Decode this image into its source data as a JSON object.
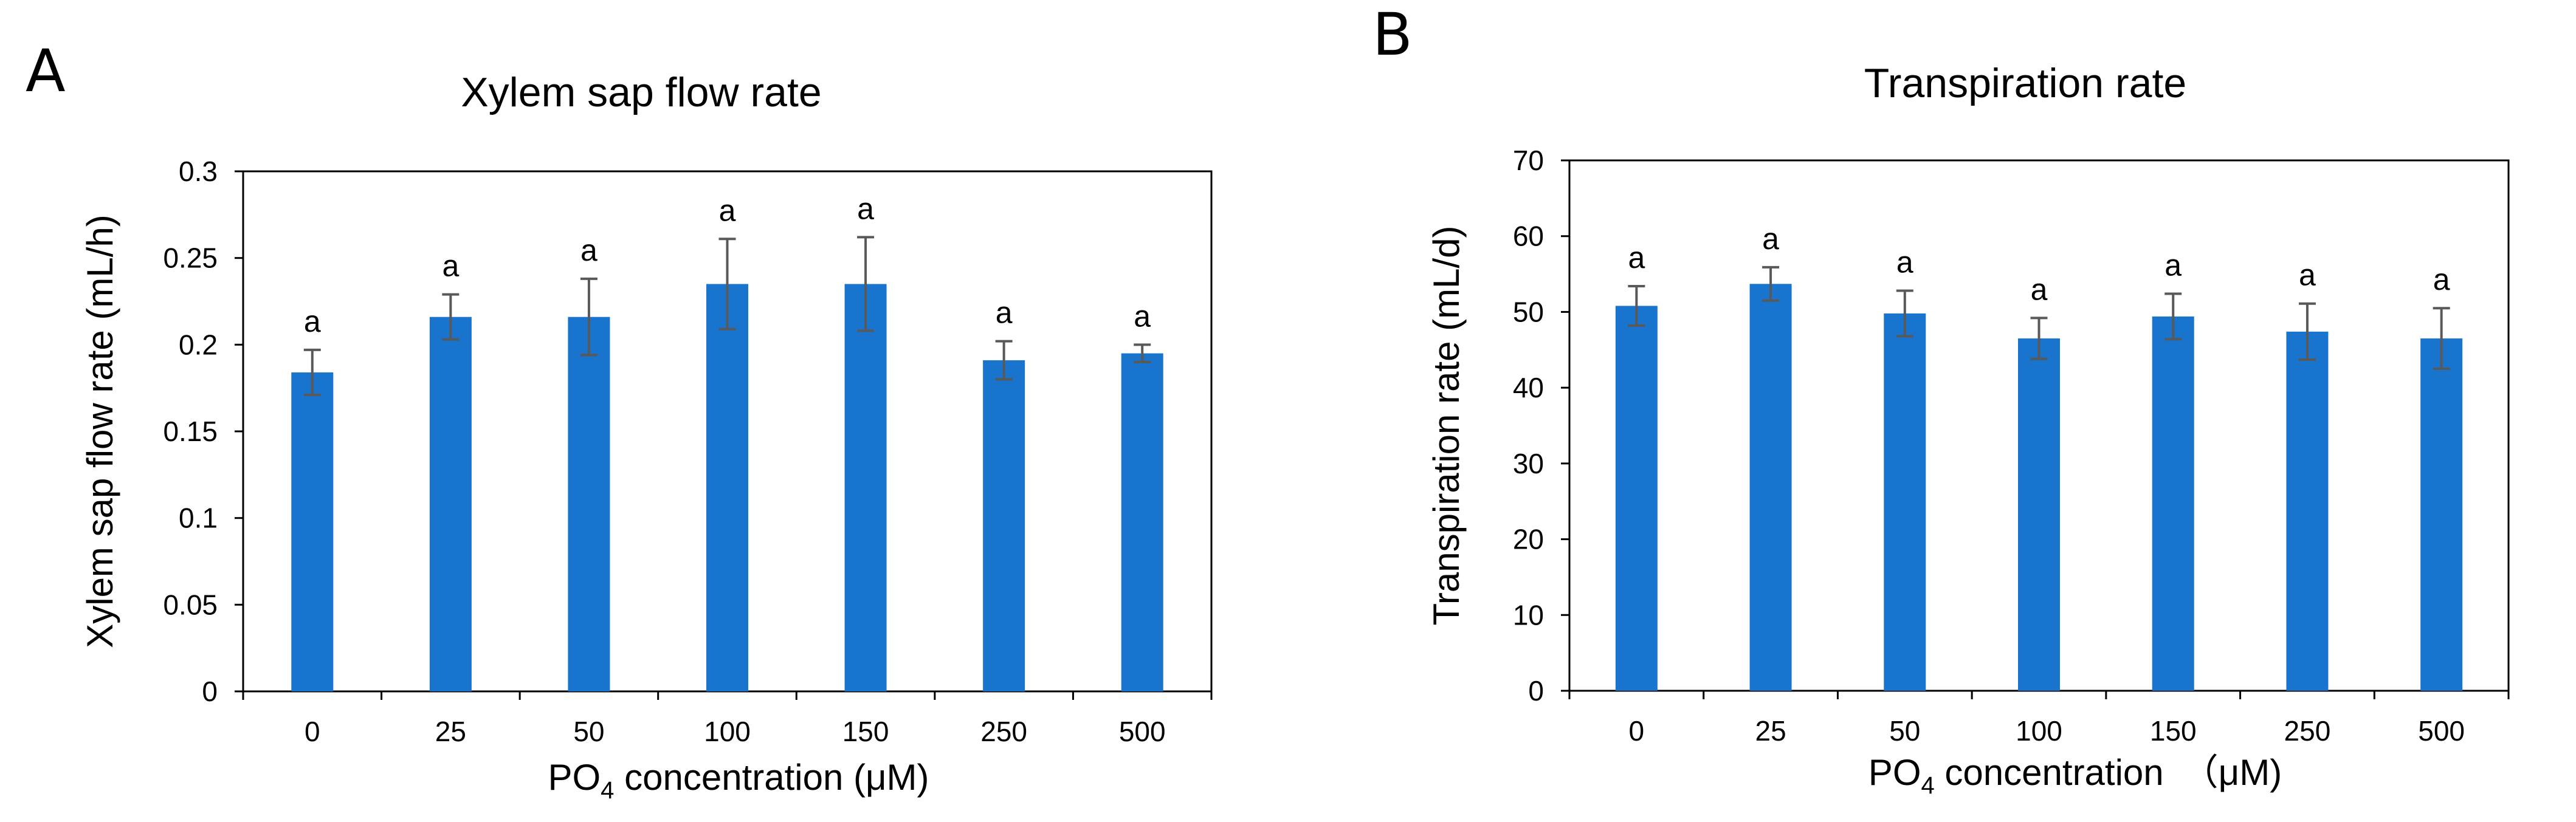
{
  "colors": {
    "bar": "#1874CD",
    "error_bar": "#595959",
    "axis": "#000000",
    "text": "#000000"
  },
  "chart_data": [
    {
      "panel_label": "A",
      "type": "bar",
      "title": "Xylem sap flow rate",
      "xlabel_main": "PO",
      "xlabel_sub": "4",
      "xlabel_rest": " concentration (μM)",
      "ylabel": "Xylem sap flow rate (mL/h)",
      "categories": [
        "0",
        "25",
        "50",
        "100",
        "150",
        "250",
        "500"
      ],
      "values": [
        0.184,
        0.216,
        0.216,
        0.235,
        0.235,
        0.191,
        0.195
      ],
      "errors": [
        0.013,
        0.013,
        0.022,
        0.026,
        0.027,
        0.011,
        0.005
      ],
      "significance": [
        "a",
        "a",
        "a",
        "a",
        "a",
        "a",
        "a"
      ],
      "ylim": [
        0,
        0.3
      ],
      "yticks": [
        0,
        0.05,
        0.1,
        0.15,
        0.2,
        0.25,
        0.3
      ],
      "ytick_labels": [
        "0",
        "0.05",
        "0.1",
        "0.15",
        "0.2",
        "0.25",
        "0.3"
      ]
    },
    {
      "panel_label": "B",
      "type": "bar",
      "title": "Transpiration rate",
      "xlabel_main": "PO",
      "xlabel_sub": "4",
      "xlabel_rest": " concentration　（μM)",
      "ylabel": "Transpiration rate (mL/d)",
      "categories": [
        "0",
        "25",
        "50",
        "100",
        "150",
        "250",
        "500"
      ],
      "values": [
        50.8,
        53.7,
        49.8,
        46.5,
        49.4,
        47.4,
        46.5
      ],
      "errors": [
        2.6,
        2.2,
        3.0,
        2.7,
        3.0,
        3.7,
        4.0
      ],
      "significance": [
        "a",
        "a",
        "a",
        "a",
        "a",
        "a",
        "a"
      ],
      "ylim": [
        0,
        70
      ],
      "yticks": [
        0,
        10,
        20,
        30,
        40,
        50,
        60,
        70
      ],
      "ytick_labels": [
        "0",
        "10",
        "20",
        "30",
        "40",
        "50",
        "60",
        "70"
      ]
    }
  ]
}
